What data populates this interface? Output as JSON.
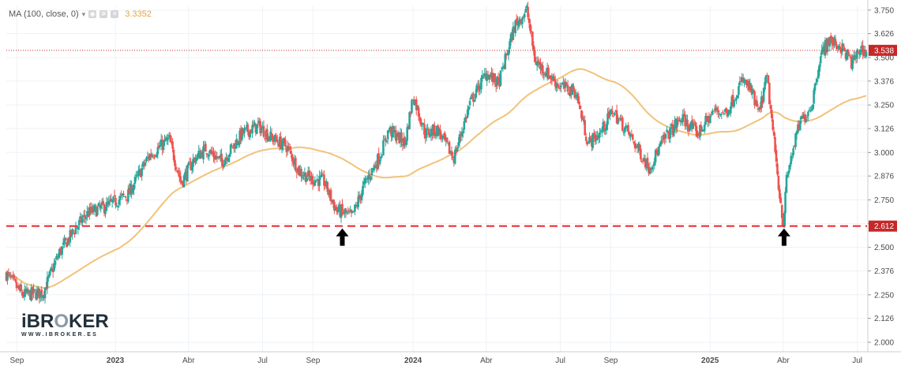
{
  "legend": {
    "indicator": "MA (100, close, 0)",
    "value": "3.3352",
    "caret": "▾",
    "settings_icon": "eye-icon",
    "gear_icon": "gear-icon",
    "close_icon": "close-icon"
  },
  "logo": {
    "name_prefix": "iBR",
    "name_o": "O",
    "name_suffix": "KER",
    "tagline": "WWW.IBROKER.ES"
  },
  "colors": {
    "up": "#26a69a",
    "down": "#ef5350",
    "ma": "#f2c27a",
    "support": "#e8242b",
    "price_line": "#c62828",
    "grid": "#eef2f6",
    "axis_text": "#4a4a4a"
  },
  "chart_data": {
    "type": "candlestick",
    "title": "",
    "ylim": [
      1.95,
      3.77
    ],
    "y_ticks": [
      2.0,
      2.126,
      2.25,
      2.376,
      2.5,
      2.626,
      2.75,
      2.876,
      3.0,
      3.126,
      3.25,
      3.376,
      3.5,
      3.626,
      3.75
    ],
    "y_tick_labels": [
      "2.000",
      "2.126",
      "2.250",
      "2.376",
      "2.500",
      "2.626",
      "2.750",
      "2.876",
      "3.000",
      "3.126",
      "3.250",
      "3.376",
      "3.500",
      "3.626",
      "3.750"
    ],
    "x_tick_labels": [
      {
        "label": "Sep",
        "day": 13,
        "bold": false
      },
      {
        "label": "2023",
        "day": 134,
        "bold": true
      },
      {
        "label": "Abr",
        "day": 224,
        "bold": false
      },
      {
        "label": "Jul",
        "day": 315,
        "bold": false
      },
      {
        "label": "Sep",
        "day": 377,
        "bold": false
      },
      {
        "label": "2024",
        "day": 500,
        "bold": true
      },
      {
        "label": "Abr",
        "day": 590,
        "bold": false
      },
      {
        "label": "Jul",
        "day": 681,
        "bold": false
      },
      {
        "label": "Sep",
        "day": 743,
        "bold": false
      },
      {
        "label": "2025",
        "day": 865,
        "bold": true
      },
      {
        "label": "Abr",
        "day": 955,
        "bold": false
      },
      {
        "label": "Jul",
        "day": 1046,
        "bold": false
      }
    ],
    "x_range_days": [
      0,
      1058
    ],
    "price_anchor_days": [
      0,
      20,
      45,
      65,
      85,
      100,
      125,
      150,
      175,
      200,
      215,
      230,
      245,
      265,
      290,
      310,
      325,
      345,
      360,
      375,
      390,
      405,
      425,
      440,
      460,
      470,
      490,
      500,
      515,
      530,
      550,
      570,
      590,
      605,
      625,
      640,
      650,
      660,
      680,
      700,
      715,
      730,
      745,
      765,
      790,
      810,
      830,
      850,
      870,
      885,
      905,
      915,
      925,
      935,
      950,
      955,
      959,
      965,
      975,
      990,
      1000,
      1010,
      1025,
      1040,
      1050,
      1058
    ],
    "price_anchor_values": [
      2.36,
      2.25,
      2.26,
      2.47,
      2.6,
      2.68,
      2.72,
      2.78,
      2.98,
      3.07,
      2.84,
      2.96,
      3.02,
      2.95,
      3.1,
      3.14,
      3.08,
      3.03,
      2.9,
      2.86,
      2.85,
      2.7,
      2.66,
      2.83,
      2.99,
      3.12,
      3.05,
      3.3,
      3.1,
      3.12,
      2.97,
      3.26,
      3.42,
      3.36,
      3.67,
      3.75,
      3.48,
      3.44,
      3.35,
      3.32,
      3.05,
      3.1,
      3.22,
      3.1,
      2.92,
      3.08,
      3.18,
      3.1,
      3.22,
      3.21,
      3.38,
      3.33,
      3.2,
      3.4,
      2.8,
      2.625,
      2.85,
      2.98,
      3.15,
      3.25,
      3.5,
      3.59,
      3.56,
      3.47,
      3.55,
      3.52
    ],
    "ma_label": "MA (100, close, 0)",
    "ma_last_value": 3.3352,
    "support_level": 2.612,
    "support_label": "2.612",
    "last_price": 3.538,
    "last_price_label": "3.538",
    "markers": [
      {
        "label": "support-touch-1",
        "day": 413,
        "price": 2.612
      },
      {
        "label": "support-touch-2",
        "day": 956,
        "price": 2.612
      }
    ]
  }
}
